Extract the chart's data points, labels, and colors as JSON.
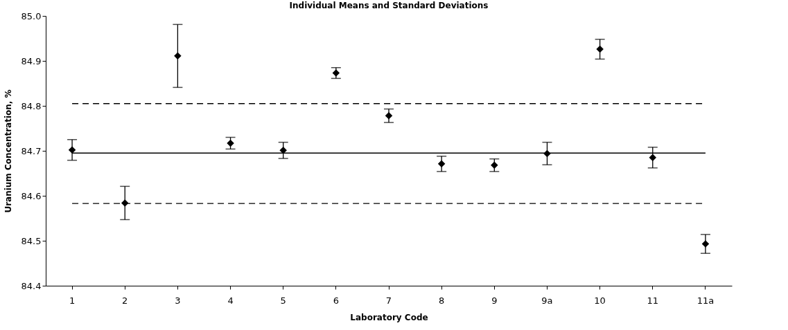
{
  "chart_data": {
    "type": "scatter",
    "title": "Individual Means and Standard Deviations",
    "xlabel": "Laboratory Code",
    "ylabel": "Uranium Concentration, %",
    "categories": [
      "1",
      "2",
      "3",
      "4",
      "5",
      "6",
      "7",
      "8",
      "9",
      "9a",
      "10",
      "11",
      "11a"
    ],
    "series": [
      {
        "color": "#000000",
        "values": [
          84.702,
          84.584,
          84.911,
          84.717,
          84.701,
          84.873,
          84.778,
          84.671,
          84.668,
          84.694,
          84.926,
          84.685,
          84.493
        ],
        "errors": [
          0.023,
          0.037,
          0.07,
          0.013,
          0.018,
          0.012,
          0.015,
          0.017,
          0.014,
          0.025,
          0.022,
          0.023,
          0.021
        ]
      }
    ],
    "ylim": [
      84.4,
      85.0
    ],
    "yticks": [
      {
        "value": 84.4,
        "label": "84.4"
      },
      {
        "value": 84.5,
        "label": "84.5"
      },
      {
        "value": 84.6,
        "label": "84.6"
      },
      {
        "value": 84.7,
        "label": "84.7"
      },
      {
        "value": 84.8,
        "label": "84.8"
      },
      {
        "value": 84.9,
        "label": "84.9"
      },
      {
        "value": 85.0,
        "label": "85.0"
      }
    ],
    "ref_lines": [
      {
        "axis": "y",
        "value": 84.695,
        "color": "#000000",
        "line_style": "solid"
      },
      {
        "axis": "y",
        "value": 84.805,
        "color": "#000000",
        "line_style": "dashed"
      },
      {
        "axis": "y",
        "value": 84.583,
        "color": "#000000",
        "line_style": "dashed"
      }
    ],
    "marker": "diamond",
    "grid": false
  }
}
